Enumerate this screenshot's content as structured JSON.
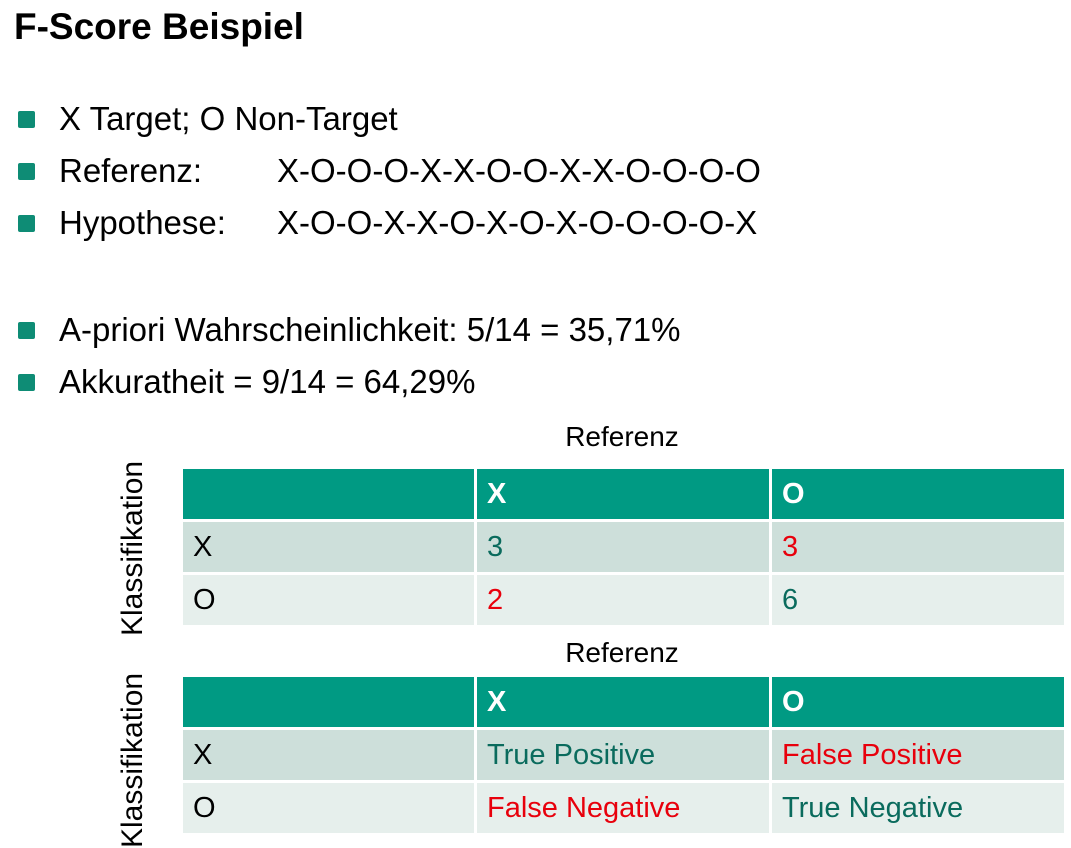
{
  "title": "F-Score Beispiel",
  "bullets": [
    {
      "label": "X Target; O Non-Target",
      "value": ""
    },
    {
      "label": "Referenz:",
      "value": "X-O-O-O-X-X-O-O-X-X-O-O-O-O"
    },
    {
      "label": "Hypothese:",
      "value": "X-O-O-X-X-O-X-O-X-O-O-O-O-X"
    },
    {
      "label": "A-priori Wahrscheinlichkeit: 5/14 = 35,71%",
      "value": ""
    },
    {
      "label": "Akkuratheit = 9/14 = 64,29%",
      "value": ""
    }
  ],
  "colors": {
    "accent": "#009a83",
    "bullet": "#0e8c75",
    "correct": "#0a6b5d",
    "error": "#e8000c"
  },
  "table1": {
    "column_label": "Referenz",
    "row_label": "Klassifikation",
    "header": [
      "",
      "X",
      "O"
    ],
    "rows": [
      [
        "X",
        "3",
        "3"
      ],
      [
        "O",
        "2",
        "6"
      ]
    ]
  },
  "table2": {
    "column_label": "Referenz",
    "row_label": "Klassifikation",
    "header": [
      "",
      "X",
      "O"
    ],
    "rows": [
      [
        "X",
        "True Positive",
        "False Positive"
      ],
      [
        "O",
        "False Negative",
        "True Negative"
      ]
    ]
  }
}
